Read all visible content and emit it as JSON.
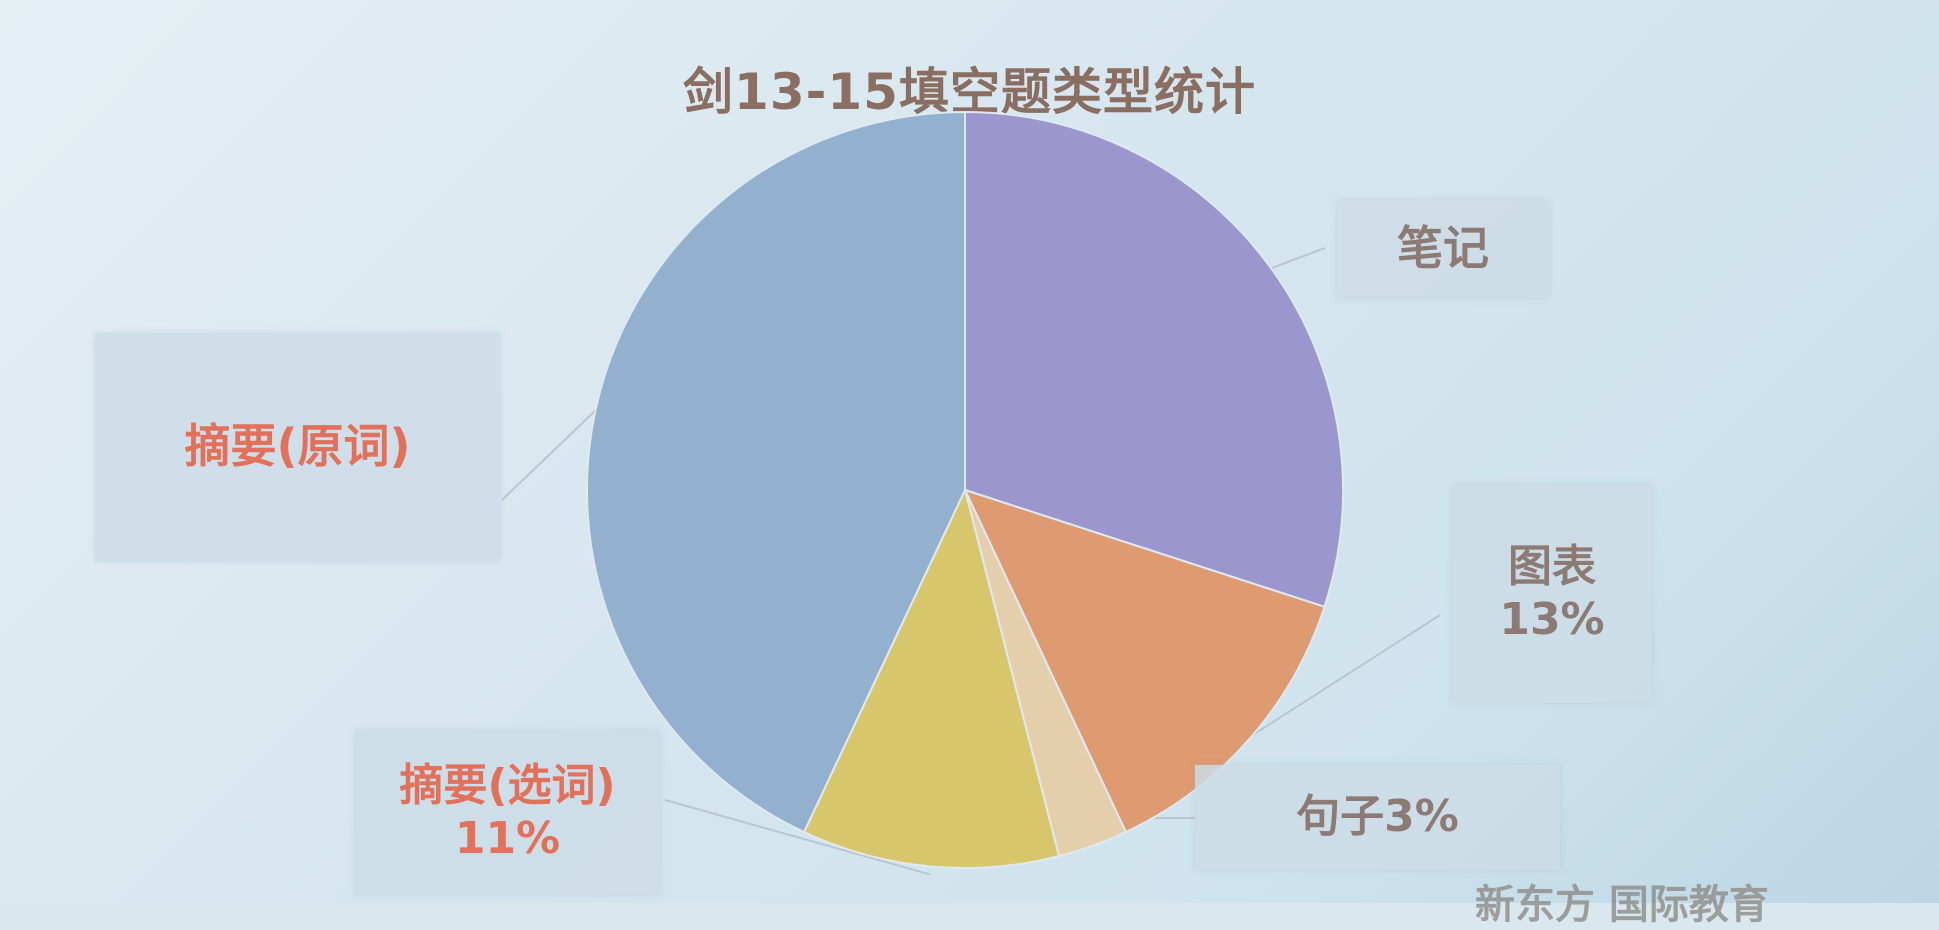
{
  "chart_data": {
    "type": "pie",
    "title": "剑13-15填空题类型统计",
    "slices": [
      {
        "label": "笔记",
        "value": 30,
        "color": "#9b96cd",
        "value_label": ""
      },
      {
        "label": "图表",
        "value": 13,
        "color": "#de9a70",
        "value_label": "13%"
      },
      {
        "label": "句子",
        "value": 3,
        "color": "#e4ceac",
        "value_label": "3%"
      },
      {
        "label": "摘要(选词)",
        "value": 11,
        "color": "#d7c66b",
        "value_label": "11%"
      },
      {
        "label": "摘要(原词)",
        "value": 43,
        "color": "#93b0cf",
        "value_label": ""
      }
    ],
    "start_angle_deg": 0,
    "direction": "clockwise"
  },
  "labels": {
    "notes": {
      "line1": "笔记",
      "line2": ""
    },
    "chart": {
      "line1": "图表",
      "line2": "13%"
    },
    "sentence": {
      "line1": "句子3%",
      "line2": ""
    },
    "summary_select": {
      "line1": "摘要(选词)",
      "line2": "11%"
    },
    "summary_original": {
      "line1": "摘要(原词)",
      "line2": ""
    }
  },
  "colors": {
    "label_text": "#8c7a74",
    "label_accent": "#e2715b",
    "title_text": "#8a6e62"
  },
  "watermark": "新东方 国际教育"
}
